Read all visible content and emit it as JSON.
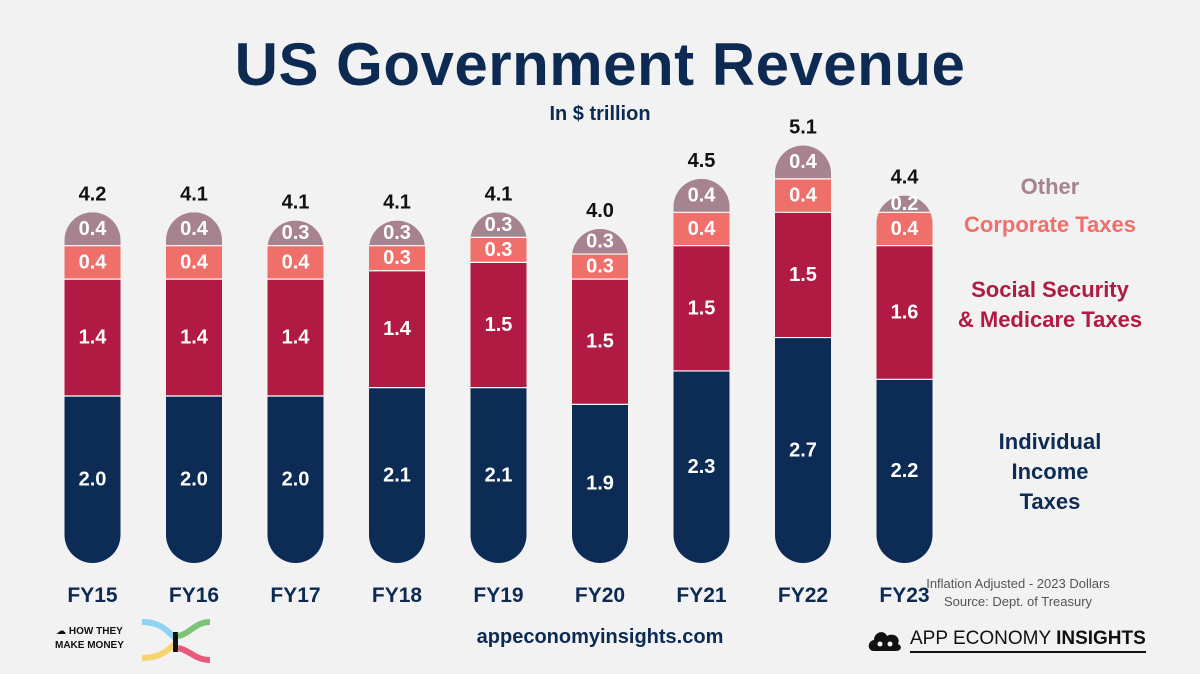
{
  "title": "US Government Revenue",
  "subtitle": "In $ trillion",
  "colors": {
    "individual": "#0c2c56",
    "social": "#b01a43",
    "corporate": "#ef6f6a",
    "other": "#a6838f",
    "title": "#0d2a52"
  },
  "legend": {
    "other": "Other",
    "corporate": "Corporate Taxes",
    "social_line1": "Social Security",
    "social_line2": "& Medicare Taxes",
    "individual_line1": "Individual",
    "individual_line2": "Income",
    "individual_line3": "Taxes"
  },
  "chart_data": {
    "type": "bar",
    "stacked": true,
    "categories": [
      "FY15",
      "FY16",
      "FY17",
      "FY18",
      "FY19",
      "FY20",
      "FY21",
      "FY22",
      "FY23"
    ],
    "series": [
      {
        "name": "Individual Income Taxes",
        "key": "individual",
        "values": [
          2.0,
          2.0,
          2.0,
          2.1,
          2.1,
          1.9,
          2.3,
          2.7,
          2.2
        ]
      },
      {
        "name": "Social Security & Medicare Taxes",
        "key": "social",
        "values": [
          1.4,
          1.4,
          1.4,
          1.4,
          1.5,
          1.5,
          1.5,
          1.5,
          1.6
        ]
      },
      {
        "name": "Corporate Taxes",
        "key": "corporate",
        "values": [
          0.4,
          0.4,
          0.4,
          0.3,
          0.3,
          0.3,
          0.4,
          0.4,
          0.4
        ]
      },
      {
        "name": "Other",
        "key": "other",
        "values": [
          0.4,
          0.4,
          0.3,
          0.3,
          0.3,
          0.3,
          0.4,
          0.4,
          0.2
        ]
      }
    ],
    "totals": [
      "4.2",
      "4.1",
      "4.1",
      "4.1",
      "4.1",
      "4.0",
      "4.5",
      "5.1",
      "4.4"
    ],
    "value_labels": {
      "individual": [
        "2.0",
        "2.0",
        "2.0",
        "2.1",
        "2.1",
        "1.9",
        "2.3",
        "2.7",
        "2.2"
      ],
      "social": [
        "1.4",
        "1.4",
        "1.4",
        "1.4",
        "1.5",
        "1.5",
        "1.5",
        "1.5",
        "1.6"
      ],
      "corporate": [
        "0.4",
        "0.4",
        "0.4",
        "0.3",
        "0.3",
        "0.3",
        "0.4",
        "0.4",
        "0.4"
      ],
      "other": [
        "0.4",
        "0.4",
        "0.3",
        "0.3",
        "0.3",
        "0.3",
        "0.4",
        "0.4",
        "0.2"
      ]
    },
    "ylim": [
      0,
      5.1
    ],
    "grid": false,
    "legend_position": "right"
  },
  "footnote": {
    "line1": "Inflation Adjusted - 2023 Dollars",
    "line2": "Source: Dept. of Treasury"
  },
  "branding": {
    "website": "appeconomyinsights.com",
    "htmm_line1": "HOW THEY",
    "htmm_line2": "MAKE MONEY",
    "aei_light": "APP ECONOMY ",
    "aei_bold": "INSIGHTS"
  }
}
